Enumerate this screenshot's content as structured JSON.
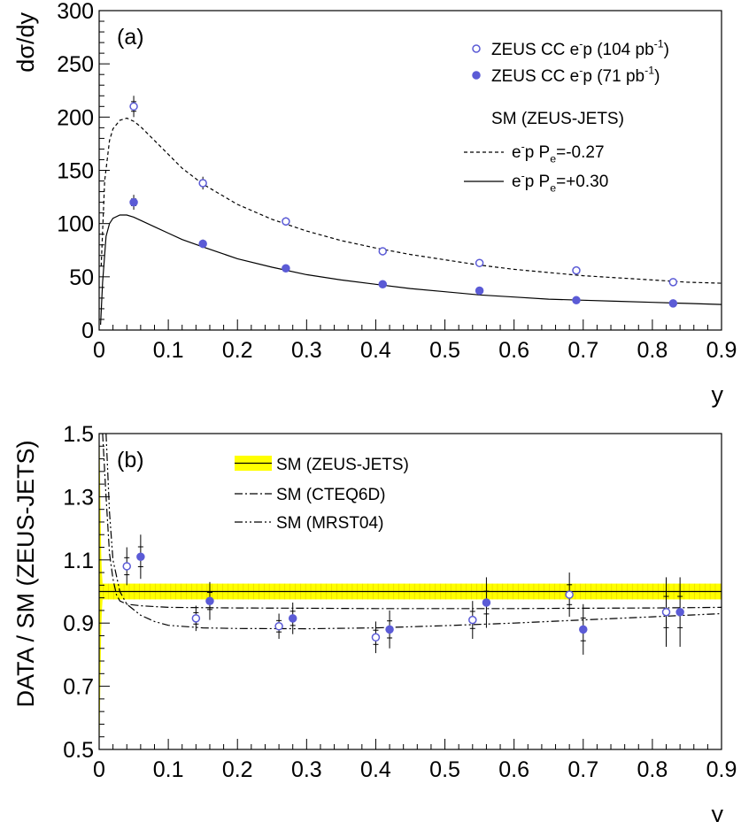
{
  "chart_data": [
    {
      "type": "scatter",
      "panel_label": "(a)",
      "ylabel": "dσ/dy",
      "xlabel": "y",
      "xlim": [
        0,
        0.9
      ],
      "ylim": [
        0,
        300
      ],
      "xticks": [
        "0",
        "0.1",
        "0.2",
        "0.3",
        "0.4",
        "0.5",
        "0.6",
        "0.7",
        "0.8",
        "0.9"
      ],
      "yticks": [
        "0",
        "50",
        "100",
        "150",
        "200",
        "250",
        "300"
      ],
      "series": [
        {
          "name": "ZEUS CC e⁻p (104 pb⁻¹)",
          "label_parts": [
            "ZEUS CC e",
            "-",
            "p (104 pb",
            "-1",
            ")"
          ],
          "marker": "open-circle",
          "x": [
            0.05,
            0.15,
            0.27,
            0.41,
            0.55,
            0.69,
            0.83
          ],
          "y": [
            210,
            138,
            102,
            74,
            63,
            56,
            45
          ],
          "err": [
            10,
            6,
            4,
            3,
            3,
            2,
            3
          ]
        },
        {
          "name": "ZEUS CC e⁻p (71 pb⁻¹)",
          "label_parts": [
            "ZEUS CC e",
            "-",
            "p (71 pb",
            "-1",
            ")"
          ],
          "marker": "filled-circle",
          "x": [
            0.05,
            0.15,
            0.27,
            0.41,
            0.55,
            0.69,
            0.83
          ],
          "y": [
            120,
            81,
            58,
            43,
            37,
            28,
            25
          ],
          "err": [
            7,
            4,
            2,
            2,
            2,
            2,
            2
          ]
        }
      ],
      "curves_title": "SM (ZEUS-JETS)",
      "curves": [
        {
          "name": "e⁻p Pₑ=-0.27",
          "label_parts": [
            "e",
            "-",
            "p P",
            "e",
            "=-0.27"
          ],
          "style": "dashed",
          "x": [
            0.003,
            0.008,
            0.015,
            0.02,
            0.03,
            0.04,
            0.05,
            0.06,
            0.08,
            0.1,
            0.12,
            0.15,
            0.2,
            0.25,
            0.3,
            0.35,
            0.4,
            0.45,
            0.5,
            0.55,
            0.6,
            0.65,
            0.7,
            0.75,
            0.8,
            0.85,
            0.9
          ],
          "y": [
            60,
            140,
            178,
            189,
            197,
            199,
            196,
            191,
            178,
            165,
            152,
            137,
            118,
            104,
            93,
            84,
            77,
            71,
            66,
            61,
            57,
            54,
            51,
            49,
            47,
            45,
            44
          ]
        },
        {
          "name": "e⁻p Pₑ=+0.30",
          "label_parts": [
            "e",
            "-",
            "p P",
            "e",
            "=+0.30"
          ],
          "style": "solid",
          "x": [
            0.002,
            0.005,
            0.01,
            0.015,
            0.02,
            0.03,
            0.04,
            0.05,
            0.06,
            0.08,
            0.1,
            0.12,
            0.15,
            0.2,
            0.25,
            0.3,
            0.35,
            0.4,
            0.45,
            0.5,
            0.55,
            0.6,
            0.65,
            0.7,
            0.75,
            0.8,
            0.85,
            0.9
          ],
          "y": [
            5,
            45,
            88,
            100,
            105,
            108,
            108,
            106,
            103,
            97,
            91,
            85,
            78,
            67,
            59,
            52,
            47,
            43,
            39,
            36,
            33,
            31,
            29,
            28,
            27,
            26,
            25,
            24
          ]
        }
      ]
    },
    {
      "type": "scatter",
      "panel_label": "(b)",
      "ylabel": "DATA / SM (ZEUS-JETS)",
      "xlabel": "y",
      "xlim": [
        0,
        0.9
      ],
      "ylim": [
        0.5,
        1.5
      ],
      "xticks": [
        "0",
        "0.1",
        "0.2",
        "0.3",
        "0.4",
        "0.5",
        "0.6",
        "0.7",
        "0.8",
        "0.9"
      ],
      "yticks": [
        "0.5",
        "0.7",
        "0.9",
        "1.1",
        "1.3",
        "1.5"
      ],
      "band": {
        "name": "SM (ZEUS-JETS)",
        "color": "#ffff00",
        "ylow": 0.975,
        "yhigh": 1.025
      },
      "series": [
        {
          "name": "ZEUS CC e⁻p (104 pb⁻¹)",
          "marker": "open-circle",
          "x": [
            0.04,
            0.14,
            0.26,
            0.4,
            0.54,
            0.68,
            0.82
          ],
          "y": [
            1.08,
            0.915,
            0.89,
            0.855,
            0.91,
            0.99,
            0.935
          ],
          "err": [
            0.06,
            0.04,
            0.04,
            0.05,
            0.06,
            0.07,
            0.11
          ]
        },
        {
          "name": "ZEUS CC e⁻p (71 pb⁻¹)",
          "marker": "filled-circle",
          "x": [
            0.06,
            0.16,
            0.28,
            0.42,
            0.56,
            0.7,
            0.84
          ],
          "y": [
            1.11,
            0.97,
            0.915,
            0.88,
            0.965,
            0.88,
            0.935
          ],
          "err": [
            0.07,
            0.06,
            0.05,
            0.06,
            0.08,
            0.08,
            0.11
          ]
        }
      ],
      "curves": [
        {
          "name": "SM (CTEQ6D)",
          "style": "dash-dot",
          "x": [
            0.005,
            0.01,
            0.015,
            0.02,
            0.025,
            0.03,
            0.04,
            0.06,
            0.1,
            0.2,
            0.3,
            0.4,
            0.5,
            0.6,
            0.7,
            0.8,
            0.9
          ],
          "y": [
            1.5,
            1.3,
            1.12,
            1.04,
            0.99,
            0.97,
            0.96,
            0.955,
            0.95,
            0.948,
            0.947,
            0.946,
            0.946,
            0.946,
            0.947,
            0.948,
            0.95
          ]
        },
        {
          "name": "SM (MRST04)",
          "style": "dash-dot-dot",
          "x": [
            0.01,
            0.015,
            0.02,
            0.03,
            0.04,
            0.06,
            0.08,
            0.1,
            0.15,
            0.2,
            0.3,
            0.4,
            0.5,
            0.6,
            0.7,
            0.8,
            0.9
          ],
          "y": [
            1.5,
            1.25,
            1.1,
            1.0,
            0.96,
            0.925,
            0.905,
            0.893,
            0.885,
            0.883,
            0.882,
            0.885,
            0.892,
            0.9,
            0.91,
            0.92,
            0.93
          ]
        }
      ]
    }
  ],
  "colors": {
    "marker": "#5b5bd6",
    "band": "#ffff00",
    "axis": "#000000"
  }
}
